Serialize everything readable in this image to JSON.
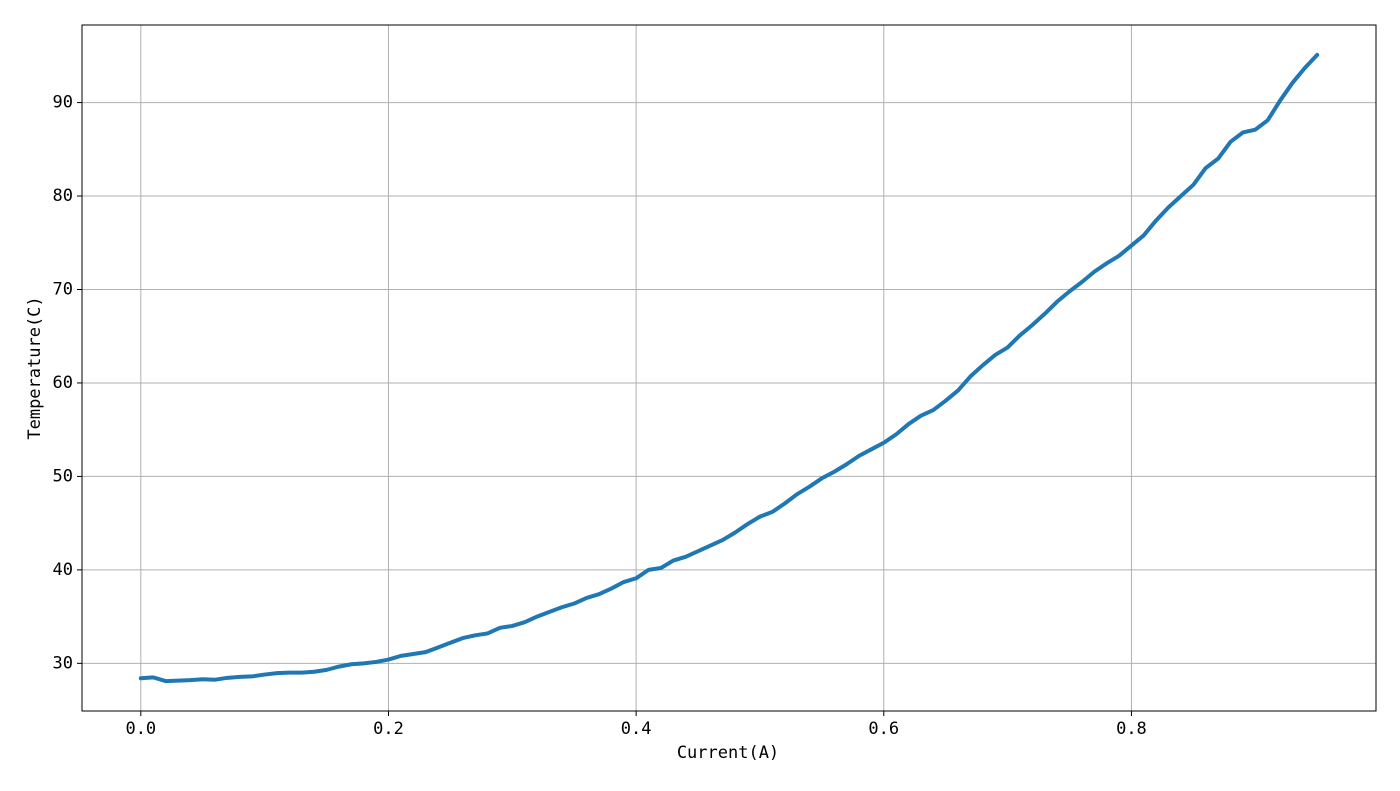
{
  "chart_data": {
    "type": "line",
    "x_label": "Current(A)",
    "y_label": "Temperature(C)",
    "x": [
      0,
      0.01,
      0.02,
      0.03,
      0.04,
      0.05,
      0.06,
      0.07,
      0.08,
      0.09,
      0.1,
      0.11,
      0.12,
      0.13,
      0.14,
      0.15,
      0.16,
      0.17,
      0.18,
      0.19,
      0.2,
      0.21,
      0.22,
      0.23,
      0.24,
      0.25,
      0.26,
      0.27,
      0.28,
      0.29,
      0.3,
      0.31,
      0.32,
      0.33,
      0.34,
      0.35,
      0.36,
      0.37,
      0.38,
      0.39,
      0.4,
      0.41,
      0.42,
      0.43,
      0.44,
      0.45,
      0.46,
      0.47,
      0.48,
      0.49,
      0.5,
      0.51,
      0.52,
      0.53,
      0.54,
      0.55,
      0.56,
      0.57,
      0.58,
      0.59,
      0.6,
      0.61,
      0.62,
      0.63,
      0.64,
      0.65,
      0.66,
      0.67,
      0.68,
      0.69,
      0.7,
      0.71,
      0.72,
      0.73,
      0.74,
      0.75,
      0.76,
      0.77,
      0.78,
      0.79,
      0.8,
      0.81,
      0.82,
      0.83,
      0.84,
      0.85,
      0.86,
      0.87,
      0.88,
      0.89,
      0.9,
      0.91,
      0.92,
      0.93,
      0.94,
      0.95
    ],
    "series": [
      {
        "color": "#1f77b4",
        "values": [
          28.4,
          28.5,
          28.1,
          28.15,
          28.2,
          28.3,
          28.25,
          28.45,
          28.55,
          28.6,
          28.8,
          28.95,
          29.0,
          29.0,
          29.1,
          29.3,
          29.65,
          29.9,
          30.0,
          30.15,
          30.4,
          30.8,
          31.0,
          31.2,
          31.7,
          32.2,
          32.7,
          33.0,
          33.2,
          33.8,
          34.0,
          34.4,
          35.0,
          35.5,
          36.0,
          36.4,
          37.0,
          37.4,
          38.0,
          38.7,
          39.1,
          40.0,
          40.2,
          41.0,
          41.4,
          42.0,
          42.6,
          43.2,
          44.0,
          44.9,
          45.7,
          46.2,
          47.1,
          48.1,
          48.9,
          49.8,
          50.5,
          51.3,
          52.2,
          52.9,
          53.6,
          54.5,
          55.6,
          56.5,
          57.1,
          58.1,
          59.2,
          60.7,
          61.9,
          63.0,
          63.8,
          65.1,
          66.2,
          67.4,
          68.7,
          69.8,
          70.8,
          71.9,
          72.8,
          73.6,
          74.7,
          75.8,
          77.4,
          78.8,
          80.0,
          81.2,
          83.0,
          84.0,
          85.8,
          86.8,
          87.1,
          88.1,
          90.2,
          92.1,
          93.7,
          95.1
        ]
      }
    ],
    "xlim": [
      -0.0475,
      0.9975
    ],
    "ylim": [
      24.9,
      98.3
    ],
    "xticks": [
      {
        "value": 0,
        "label": "0.0"
      },
      0.2,
      0.4,
      0.6,
      0.8
    ],
    "yticks": [
      30,
      40,
      50,
      60,
      70,
      80,
      90
    ],
    "grid": true
  }
}
